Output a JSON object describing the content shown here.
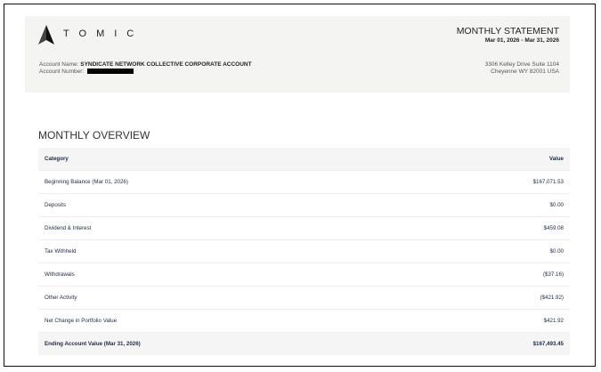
{
  "header": {
    "brand": "TOMIC",
    "account_name_label": "Account Name:",
    "account_name": "SYNDICATE NETWORK COLLECTIVE CORPORATE ACCOUNT",
    "account_number_label": "Account Number:",
    "statement_title": "MONTHLY STATEMENT",
    "statement_period": "Mar 01, 2026 - Mar 31, 2026",
    "address_line1": "3306 Kelley Drive Suite 1104",
    "address_line2": "Cheyenne WY 82001 USA"
  },
  "overview": {
    "title": "MONTHLY OVERVIEW",
    "columns": [
      "Category",
      "Value"
    ],
    "rows": [
      {
        "category": "Beginning Balance (Mar 01, 2026)",
        "value": "$167,071.53"
      },
      {
        "category": "Deposits",
        "value": "$0.00"
      },
      {
        "category": "Dividend & Interest",
        "value": "$459.08"
      },
      {
        "category": "Tax Withheld",
        "value": "$0.00"
      },
      {
        "category": "Withdrawals",
        "value": "($37.16)"
      },
      {
        "category": "Other Activity",
        "value": "($421.92)"
      },
      {
        "category": "Net Change in Portfolio Value",
        "value": "$421.92"
      },
      {
        "category": "Ending Account Value (Mar 31, 2026)",
        "value": "$167,493.45"
      }
    ]
  }
}
